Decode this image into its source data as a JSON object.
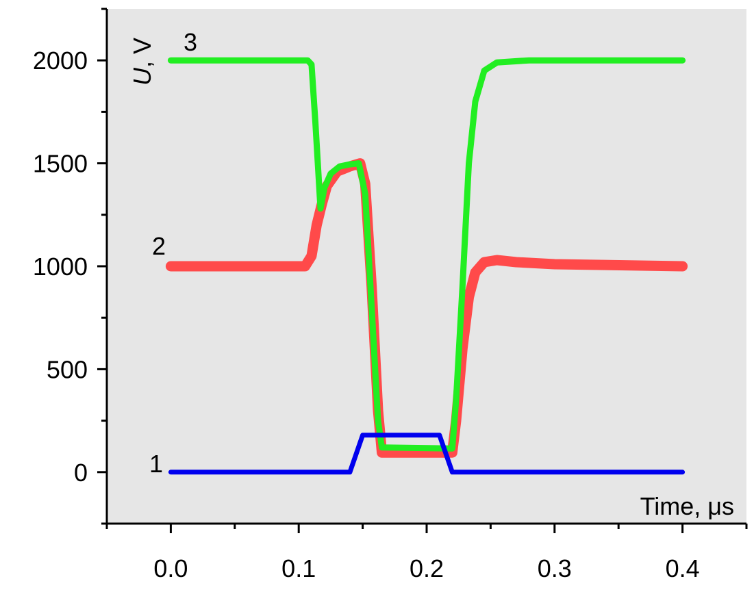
{
  "chart_data": {
    "type": "line",
    "xlabel": "Time, μs",
    "ylabel_italic": "U",
    "ylabel_rest": ", V",
    "xlim": [
      -0.05,
      0.45
    ],
    "ylim": [
      -250,
      2250
    ],
    "x_ticks": [
      0.0,
      0.1,
      0.2,
      0.3,
      0.4
    ],
    "x_tick_labels": [
      "0.0",
      "0.1",
      "0.2",
      "0.3",
      "0.4"
    ],
    "x_minor_ticks": [
      -0.05,
      0.05,
      0.15,
      0.25,
      0.35,
      0.45
    ],
    "y_ticks": [
      0,
      500,
      1000,
      1500,
      2000
    ],
    "y_tick_labels": [
      "0",
      "500",
      "1000",
      "1500",
      "2000"
    ],
    "y_minor_ticks": [
      -250,
      250,
      750,
      1250,
      1750,
      2250
    ],
    "grid": false,
    "background": "#e6e6e6",
    "series": [
      {
        "label": "1",
        "color": "#0000ee",
        "x": [
          0.0,
          0.14,
          0.15,
          0.21,
          0.22,
          0.4
        ],
        "y": [
          0,
          0,
          180,
          180,
          0,
          0
        ]
      },
      {
        "label": "2",
        "color": "#ff4a4a",
        "x": [
          0.0,
          0.105,
          0.11,
          0.114,
          0.118,
          0.122,
          0.13,
          0.14,
          0.148,
          0.152,
          0.157,
          0.162,
          0.165,
          0.22,
          0.223,
          0.228,
          0.233,
          0.238,
          0.245,
          0.255,
          0.27,
          0.3,
          0.4
        ],
        "y": [
          1000,
          1000,
          1050,
          1200,
          1300,
          1390,
          1460,
          1485,
          1500,
          1400,
          900,
          300,
          95,
          95,
          250,
          600,
          850,
          970,
          1020,
          1030,
          1020,
          1010,
          1000
        ]
      },
      {
        "label": "3",
        "color": "#22ee22",
        "x": [
          0.0,
          0.107,
          0.11,
          0.113,
          0.117,
          0.12,
          0.125,
          0.132,
          0.14,
          0.147,
          0.152,
          0.157,
          0.162,
          0.165,
          0.22,
          0.223,
          0.228,
          0.233,
          0.238,
          0.245,
          0.255,
          0.28,
          0.4
        ],
        "y": [
          2000,
          2000,
          1980,
          1700,
          1280,
          1380,
          1450,
          1485,
          1495,
          1500,
          1350,
          800,
          250,
          120,
          115,
          350,
          900,
          1500,
          1800,
          1950,
          1990,
          2000,
          2000
        ]
      }
    ]
  }
}
